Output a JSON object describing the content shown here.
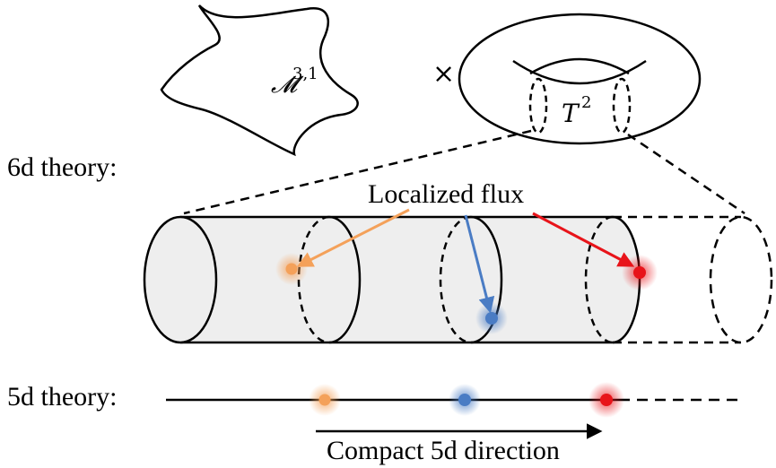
{
  "labels": {
    "six_d": "6d theory:",
    "five_d": "5d theory:",
    "localized_flux": "Localized flux",
    "compact_direction": "Compact 5d direction",
    "times": "×"
  },
  "math": {
    "manifold_symbol": "𝓜",
    "manifold_sup": "3,1",
    "torus_symbol": "T",
    "torus_sup": "2"
  },
  "colors": {
    "orange": "#f4a15a",
    "blue": "#4a7cc4",
    "red": "#e8141a",
    "cylinder_fill": "#eeeeee",
    "stroke": "#000000"
  }
}
